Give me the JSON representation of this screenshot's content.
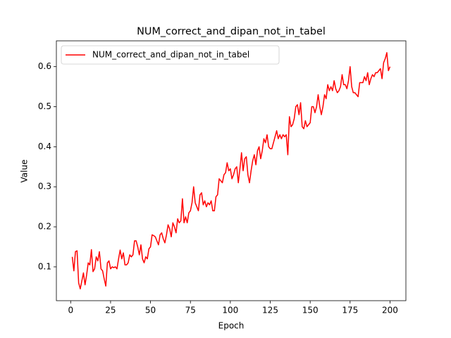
{
  "chart_data": {
    "type": "line",
    "title": "NUM_correct_and_dipan_not_in_tabel",
    "xlabel": "Epoch",
    "ylabel": "Value",
    "x": [
      1,
      2,
      3,
      4,
      5,
      6,
      7,
      8,
      9,
      10,
      11,
      12,
      13,
      14,
      15,
      16,
      17,
      18,
      19,
      20,
      21,
      22,
      23,
      24,
      25,
      26,
      27,
      28,
      29,
      30,
      31,
      32,
      33,
      34,
      35,
      36,
      37,
      38,
      39,
      40,
      41,
      42,
      43,
      44,
      45,
      46,
      47,
      48,
      49,
      50,
      51,
      52,
      53,
      54,
      55,
      56,
      57,
      58,
      59,
      60,
      61,
      62,
      63,
      64,
      65,
      66,
      67,
      68,
      69,
      70,
      71,
      72,
      73,
      74,
      75,
      76,
      77,
      78,
      79,
      80,
      81,
      82,
      83,
      84,
      85,
      86,
      87,
      88,
      89,
      90,
      91,
      92,
      93,
      94,
      95,
      96,
      97,
      98,
      99,
      100,
      101,
      102,
      103,
      104,
      105,
      106,
      107,
      108,
      109,
      110,
      111,
      112,
      113,
      114,
      115,
      116,
      117,
      118,
      119,
      120,
      121,
      122,
      123,
      124,
      125,
      126,
      127,
      128,
      129,
      130,
      131,
      132,
      133,
      134,
      135,
      136,
      137,
      138,
      139,
      140,
      141,
      142,
      143,
      144,
      145,
      146,
      147,
      148,
      149,
      150,
      151,
      152,
      153,
      154,
      155,
      156,
      157,
      158,
      159,
      160,
      161,
      162,
      163,
      164,
      165,
      166,
      167,
      168,
      169,
      170,
      171,
      172,
      173,
      174,
      175,
      176,
      177,
      178,
      179,
      180,
      181,
      182,
      183,
      184,
      185,
      186,
      187,
      188,
      189,
      190,
      191,
      192,
      193,
      194,
      195,
      196,
      197,
      198,
      199,
      200
    ],
    "series": [
      {
        "name": "NUM_correct_and_dipan_not_in_tabel",
        "color": "#ff0000",
        "values": [
          0.125,
          0.09,
          0.138,
          0.14,
          0.06,
          0.045,
          0.065,
          0.085,
          0.055,
          0.08,
          0.11,
          0.105,
          0.143,
          0.088,
          0.095,
          0.125,
          0.115,
          0.138,
          0.095,
          0.09,
          0.07,
          0.052,
          0.11,
          0.115,
          0.095,
          0.1,
          0.098,
          0.1,
          0.095,
          0.12,
          0.142,
          0.12,
          0.135,
          0.105,
          0.105,
          0.11,
          0.13,
          0.125,
          0.13,
          0.165,
          0.165,
          0.15,
          0.13,
          0.155,
          0.12,
          0.11,
          0.125,
          0.12,
          0.145,
          0.15,
          0.18,
          0.178,
          0.175,
          0.165,
          0.155,
          0.18,
          0.185,
          0.17,
          0.16,
          0.18,
          0.205,
          0.195,
          0.175,
          0.21,
          0.2,
          0.185,
          0.22,
          0.21,
          0.215,
          0.27,
          0.21,
          0.225,
          0.21,
          0.235,
          0.24,
          0.26,
          0.3,
          0.26,
          0.25,
          0.24,
          0.28,
          0.285,
          0.255,
          0.265,
          0.25,
          0.26,
          0.255,
          0.265,
          0.24,
          0.24,
          0.275,
          0.28,
          0.32,
          0.315,
          0.31,
          0.33,
          0.335,
          0.36,
          0.34,
          0.345,
          0.32,
          0.33,
          0.345,
          0.35,
          0.31,
          0.345,
          0.385,
          0.34,
          0.37,
          0.375,
          0.33,
          0.31,
          0.34,
          0.365,
          0.38,
          0.355,
          0.39,
          0.4,
          0.37,
          0.39,
          0.42,
          0.41,
          0.43,
          0.4,
          0.395,
          0.395,
          0.41,
          0.425,
          0.44,
          0.42,
          0.43,
          0.42,
          0.43,
          0.425,
          0.43,
          0.38,
          0.475,
          0.45,
          0.455,
          0.47,
          0.5,
          0.505,
          0.48,
          0.51,
          0.45,
          0.445,
          0.465,
          0.45,
          0.455,
          0.46,
          0.5,
          0.5,
          0.485,
          0.5,
          0.53,
          0.5,
          0.48,
          0.5,
          0.53,
          0.52,
          0.555,
          0.54,
          0.55,
          0.54,
          0.565,
          0.545,
          0.535,
          0.54,
          0.55,
          0.58,
          0.555,
          0.555,
          0.545,
          0.565,
          0.6,
          0.55,
          0.535,
          0.535,
          0.53,
          0.525,
          0.56,
          0.56,
          0.56,
          0.575,
          0.565,
          0.585,
          0.555,
          0.57,
          0.58,
          0.575,
          0.585,
          0.585,
          0.59,
          0.595,
          0.57,
          0.61,
          0.62,
          0.635,
          0.59,
          0.6
        ]
      }
    ],
    "xlim": [
      -8.95,
      209.95
    ],
    "xticks": [
      0,
      25,
      50,
      75,
      100,
      125,
      150,
      175,
      200
    ],
    "ylim": [
      0.0155,
      0.6645
    ],
    "yticks": [
      0.1,
      0.2,
      0.3,
      0.4,
      0.5,
      0.6
    ],
    "legend": "upper left"
  }
}
